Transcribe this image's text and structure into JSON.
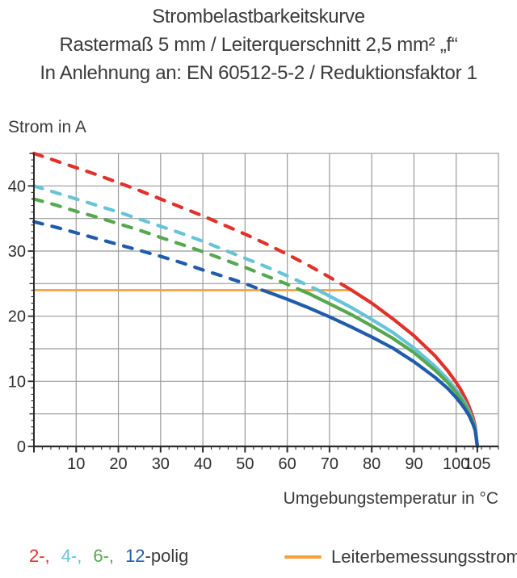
{
  "title": {
    "line1": "Strombelastbarkeitskurve",
    "line2": "Rastermaß 5 mm / Leiterquerschnitt 2,5 mm² „f“",
    "line3": "In Anlehnung an: EN 60512-5-2 / Reduktionsfaktor 1"
  },
  "colors": {
    "grid": "#9a9a9a",
    "axis": "#2b2b2b",
    "tick_text": "#2e2e2e",
    "text": "#3b3b3b"
  },
  "chart_data": {
    "type": "line",
    "title": [
      "Strombelastbarkeitskurve",
      "Rastermaß 5 mm / Leiterquerschnitt 2,5 mm² „f“",
      "In Anlehnung an: EN 60512-5-2 / Reduktionsfaktor 1"
    ],
    "xlabel": "Umgebungstemperatur in °C",
    "ylabel": "Strom in A",
    "x_axis": {
      "min": 0,
      "max": 110,
      "grid_step": 10,
      "minor_tick_step": 2,
      "major_ticks": [
        0,
        10,
        20,
        30,
        40,
        50,
        60,
        70,
        80,
        90,
        100,
        105
      ],
      "tick_labels": [
        10,
        20,
        30,
        40,
        50,
        60,
        70,
        80,
        90,
        100,
        105
      ]
    },
    "y_axis": {
      "min": 0,
      "max": 45,
      "grid_step": 5,
      "minor_tick_step": 1,
      "mid_tick_step": 5,
      "major_tick_step": 10,
      "tick_labels": [
        0,
        10,
        20,
        30,
        40
      ]
    },
    "grid": true,
    "legend": {
      "position": "bottom",
      "polig_items": [
        {
          "text": "2-,",
          "color": "#e0312b"
        },
        {
          "text": "4-,",
          "color": "#66c3d8"
        },
        {
          "text": "6-,",
          "color": "#56a84f"
        },
        {
          "text": "12",
          "color": "#1f5cab"
        },
        {
          "text": "-polig",
          "color": "#3b3b3b"
        }
      ]
    },
    "rated_line": {
      "label": "Leiterbemessungsstrom",
      "value": 24,
      "x_start": 0,
      "x_end": 75,
      "color": "#f2a13c",
      "style": "solid"
    },
    "series": [
      {
        "name": "2-polig",
        "color": "#e0312b",
        "dashed_points": [
          [
            0,
            45
          ],
          [
            5,
            43.9
          ],
          [
            10,
            42.8
          ],
          [
            15,
            41.7
          ],
          [
            20,
            40.5
          ],
          [
            25,
            39.3
          ],
          [
            30,
            38.0
          ],
          [
            35,
            36.7
          ],
          [
            40,
            35.4
          ],
          [
            45,
            34.0
          ],
          [
            50,
            32.6
          ],
          [
            55,
            31.1
          ],
          [
            60,
            29.5
          ],
          [
            65,
            27.8
          ],
          [
            70,
            26.0
          ],
          [
            75,
            24.1
          ]
        ],
        "solid_points": [
          [
            75,
            24.1
          ],
          [
            80,
            22.0
          ],
          [
            85,
            19.6
          ],
          [
            90,
            17.0
          ],
          [
            95,
            13.9
          ],
          [
            98,
            11.6
          ],
          [
            100,
            9.8
          ],
          [
            101,
            8.8
          ],
          [
            102,
            7.6
          ],
          [
            103,
            6.2
          ],
          [
            104,
            4.4
          ],
          [
            104.5,
            3.1
          ],
          [
            105,
            0
          ]
        ]
      },
      {
        "name": "4-polig",
        "color": "#66c3d8",
        "dashed_points": [
          [
            0,
            40
          ],
          [
            5,
            39.0
          ],
          [
            10,
            38.0
          ],
          [
            15,
            37.0
          ],
          [
            20,
            36.0
          ],
          [
            25,
            34.9
          ],
          [
            30,
            33.8
          ],
          [
            35,
            32.7
          ],
          [
            40,
            31.5
          ],
          [
            45,
            30.2
          ],
          [
            50,
            28.9
          ],
          [
            55,
            27.6
          ],
          [
            60,
            26.2
          ],
          [
            65,
            24.7
          ],
          [
            67,
            24.1
          ]
        ],
        "solid_points": [
          [
            67,
            24.1
          ],
          [
            70,
            23.1
          ],
          [
            75,
            21.4
          ],
          [
            80,
            19.5
          ],
          [
            85,
            17.5
          ],
          [
            90,
            15.1
          ],
          [
            95,
            12.3
          ],
          [
            98,
            10.3
          ],
          [
            100,
            8.7
          ],
          [
            101,
            7.8
          ],
          [
            102,
            6.8
          ],
          [
            103,
            5.5
          ],
          [
            104,
            3.9
          ],
          [
            104.5,
            2.8
          ],
          [
            105,
            0
          ]
        ]
      },
      {
        "name": "6-polig",
        "color": "#56a84f",
        "dashed_points": [
          [
            0,
            38
          ],
          [
            5,
            37.1
          ],
          [
            10,
            36.1
          ],
          [
            15,
            35.2
          ],
          [
            20,
            34.2
          ],
          [
            25,
            33.2
          ],
          [
            30,
            32.1
          ],
          [
            35,
            31.0
          ],
          [
            40,
            29.9
          ],
          [
            45,
            28.7
          ],
          [
            50,
            27.5
          ],
          [
            55,
            26.2
          ],
          [
            60,
            24.9
          ],
          [
            63.5,
            23.9
          ]
        ],
        "solid_points": [
          [
            63.5,
            23.9
          ],
          [
            65,
            23.5
          ],
          [
            70,
            21.9
          ],
          [
            75,
            20.3
          ],
          [
            80,
            18.5
          ],
          [
            85,
            16.6
          ],
          [
            90,
            14.4
          ],
          [
            95,
            11.7
          ],
          [
            98,
            9.8
          ],
          [
            100,
            8.3
          ],
          [
            101,
            7.4
          ],
          [
            102,
            6.4
          ],
          [
            103,
            5.2
          ],
          [
            104,
            3.7
          ],
          [
            104.5,
            2.6
          ],
          [
            105,
            0
          ]
        ]
      },
      {
        "name": "12-polig",
        "color": "#1f5cab",
        "dashed_points": [
          [
            0,
            34.5
          ],
          [
            5,
            33.7
          ],
          [
            10,
            32.8
          ],
          [
            15,
            31.9
          ],
          [
            20,
            31.0
          ],
          [
            25,
            30.1
          ],
          [
            30,
            29.2
          ],
          [
            35,
            28.2
          ],
          [
            40,
            27.1
          ],
          [
            45,
            26.1
          ],
          [
            50,
            25.0
          ],
          [
            54,
            24.0
          ]
        ],
        "solid_points": [
          [
            54,
            24.0
          ],
          [
            55,
            23.8
          ],
          [
            60,
            22.6
          ],
          [
            65,
            21.3
          ],
          [
            70,
            19.9
          ],
          [
            75,
            18.4
          ],
          [
            80,
            16.8
          ],
          [
            85,
            15.1
          ],
          [
            90,
            13.0
          ],
          [
            95,
            10.6
          ],
          [
            98,
            8.9
          ],
          [
            100,
            7.5
          ],
          [
            101,
            6.7
          ],
          [
            102,
            5.8
          ],
          [
            103,
            4.8
          ],
          [
            104,
            3.4
          ],
          [
            104.5,
            2.4
          ],
          [
            105,
            0
          ]
        ]
      }
    ]
  }
}
